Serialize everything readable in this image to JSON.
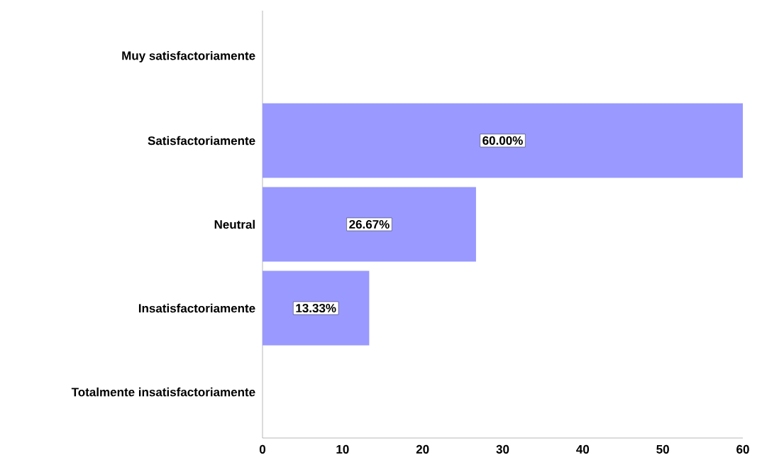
{
  "chart_data": {
    "type": "bar",
    "orientation": "horizontal",
    "categories": [
      "Muy satisfactoriamente",
      "Satisfactoriamente",
      "Neutral",
      "Insatisfactoriamente",
      "Totalmente insatisfactoriamente"
    ],
    "values": [
      0,
      60,
      26.67,
      13.33,
      0
    ],
    "value_labels": [
      null,
      "60.00%",
      "26.67%",
      "13.33%",
      null
    ],
    "color": "#9999ff",
    "xlim": [
      0,
      60
    ],
    "xticks": [
      0,
      10,
      20,
      30,
      40,
      50,
      60
    ]
  }
}
